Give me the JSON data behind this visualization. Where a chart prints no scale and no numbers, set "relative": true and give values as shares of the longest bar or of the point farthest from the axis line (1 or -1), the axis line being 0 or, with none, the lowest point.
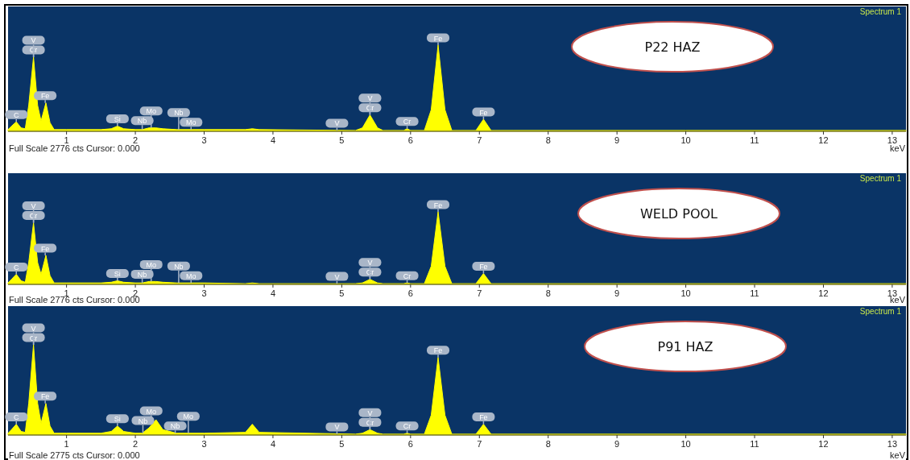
{
  "chart_data": [
    {
      "type": "area",
      "title": "P22 HAZ",
      "subtitle": "Spectrum 1",
      "xlabel": "keV",
      "relative": true,
      "xlim": [
        0.15,
        13.2
      ],
      "xticks": [
        1,
        2,
        3,
        4,
        5,
        6,
        7,
        8,
        9,
        10,
        11,
        12,
        13
      ],
      "grid": false,
      "x": [
        0.15,
        0.2,
        0.27,
        0.34,
        0.4,
        0.45,
        0.52,
        0.58,
        0.63,
        0.7,
        0.76,
        0.82,
        1.0,
        1.5,
        1.65,
        1.74,
        1.83,
        2.0,
        2.1,
        2.2,
        2.3,
        2.4,
        2.6,
        3.0,
        3.6,
        3.7,
        3.8,
        5.2,
        5.3,
        5.41,
        5.52,
        5.6,
        5.9,
        5.95,
        6.0,
        6.2,
        6.3,
        6.4,
        6.5,
        6.6,
        6.95,
        7.06,
        7.17,
        7.5,
        10,
        13.2
      ],
      "series": [
        {
          "color": "#ffff00",
          "values": [
            0.02,
            0.06,
            0.11,
            0.04,
            0.03,
            0.3,
            0.86,
            0.3,
            0.12,
            0.33,
            0.1,
            0.02,
            0.02,
            0.02,
            0.03,
            0.06,
            0.03,
            0.02,
            0.02,
            0.04,
            0.04,
            0.03,
            0.02,
            0.02,
            0.02,
            0.03,
            0.02,
            0.01,
            0.04,
            0.19,
            0.04,
            0.01,
            0.01,
            0.03,
            0.01,
            0.01,
            0.25,
            1,
            0.25,
            0.01,
            0.01,
            0.14,
            0.01,
            0.01,
            0.01,
            0.01
          ]
        }
      ],
      "annotations": [
        "Full Scale 2776 cts Cursor: 0.000",
        {
          "text": "C",
          "x": 0.27,
          "y": 0.11
        },
        {
          "text": "Fe",
          "x": 0.69,
          "y": 0.33
        },
        {
          "text": "Cr",
          "x": 0.52,
          "y": 0.86
        },
        {
          "text": "V",
          "x": 0.52,
          "y": 0.86
        },
        {
          "text": "Si",
          "x": 1.74,
          "y": 0.06
        },
        {
          "text": "Nb",
          "x": 2.1,
          "y": 0.02
        },
        {
          "text": "Mo",
          "x": 2.23,
          "y": 0.04
        },
        {
          "text": "Mo",
          "x": 2.81,
          "y": 0.02
        },
        {
          "text": "Nb",
          "x": 2.63,
          "y": 0.02
        },
        {
          "text": "V",
          "x": 4.93,
          "y": 0.01
        },
        {
          "text": "Cr",
          "x": 5.41,
          "y": 0.19
        },
        {
          "text": "V",
          "x": 5.41,
          "y": 0.19
        },
        {
          "text": "Cr",
          "x": 5.95,
          "y": 0.03
        },
        {
          "text": "Fe",
          "x": 6.4,
          "y": 1
        },
        {
          "text": "Fe",
          "x": 7.06,
          "y": 0.14
        }
      ]
    },
    {
      "type": "area",
      "title": "WELD POOL",
      "subtitle": "Spectrum 1",
      "xlabel": "keV",
      "relative": true,
      "xlim": [
        0.15,
        13.2
      ],
      "xticks": [
        1,
        2,
        3,
        4,
        5,
        6,
        7,
        8,
        9,
        10,
        11,
        12,
        13
      ],
      "grid": false,
      "x": [
        0.15,
        0.2,
        0.27,
        0.34,
        0.4,
        0.45,
        0.52,
        0.58,
        0.63,
        0.7,
        0.76,
        0.82,
        1.0,
        1.5,
        1.65,
        1.74,
        1.83,
        2.0,
        2.1,
        2.2,
        2.3,
        2.4,
        2.6,
        3.0,
        3.6,
        3.7,
        3.8,
        5.2,
        5.3,
        5.41,
        5.52,
        5.6,
        5.9,
        5.95,
        6.0,
        6.2,
        6.3,
        6.4,
        6.5,
        6.6,
        6.95,
        7.06,
        7.17,
        7.5,
        10,
        13.2
      ],
      "series": [
        {
          "color": "#ffff00",
          "values": [
            0.02,
            0.07,
            0.14,
            0.05,
            0.03,
            0.3,
            0.85,
            0.3,
            0.14,
            0.4,
            0.12,
            0.02,
            0.02,
            0.02,
            0.03,
            0.05,
            0.03,
            0.02,
            0.02,
            0.04,
            0.04,
            0.03,
            0.02,
            0.02,
            0.01,
            0.02,
            0.01,
            0.01,
            0.02,
            0.07,
            0.02,
            0.01,
            0.01,
            0.02,
            0.01,
            0.01,
            0.25,
            1,
            0.25,
            0.01,
            0.01,
            0.15,
            0.01,
            0.01,
            0.01,
            0.01
          ]
        }
      ],
      "annotations": [
        "Full Scale 2776 cts Cursor: 0.000",
        {
          "text": "C",
          "x": 0.27,
          "y": 0.14
        },
        {
          "text": "Fe",
          "x": 0.69,
          "y": 0.4
        },
        {
          "text": "Cr",
          "x": 0.52,
          "y": 0.85
        },
        {
          "text": "V",
          "x": 0.52,
          "y": 0.85
        },
        {
          "text": "Si",
          "x": 1.74,
          "y": 0.05
        },
        {
          "text": "Nb",
          "x": 2.1,
          "y": 0.02
        },
        {
          "text": "Mo",
          "x": 2.23,
          "y": 0.04
        },
        {
          "text": "Mo",
          "x": 2.81,
          "y": 0.02
        },
        {
          "text": "Nb",
          "x": 2.63,
          "y": 0.02
        },
        {
          "text": "V",
          "x": 4.93,
          "y": 0.01
        },
        {
          "text": "Cr",
          "x": 5.41,
          "y": 0.07
        },
        {
          "text": "V",
          "x": 5.41,
          "y": 0.07
        },
        {
          "text": "Cr",
          "x": 5.95,
          "y": 0.02
        },
        {
          "text": "Fe",
          "x": 6.4,
          "y": 1
        },
        {
          "text": "Fe",
          "x": 7.06,
          "y": 0.15
        }
      ]
    },
    {
      "type": "area",
      "title": "P91 HAZ",
      "subtitle": "Spectrum 1",
      "xlabel": "keV",
      "relative": true,
      "xlim": [
        0.15,
        13.2
      ],
      "xticks": [
        1,
        2,
        3,
        4,
        5,
        6,
        7,
        8,
        9,
        10,
        11,
        12,
        13
      ],
      "grid": false,
      "x": [
        0.15,
        0.2,
        0.27,
        0.34,
        0.4,
        0.45,
        0.52,
        0.58,
        0.63,
        0.7,
        0.76,
        0.82,
        1.0,
        1.5,
        1.65,
        1.74,
        1.83,
        2.0,
        2.1,
        2.2,
        2.3,
        2.4,
        2.6,
        3.0,
        3.6,
        3.7,
        3.8,
        5.2,
        5.3,
        5.41,
        5.52,
        5.6,
        5.9,
        5.95,
        6.0,
        6.2,
        6.3,
        6.4,
        6.5,
        6.6,
        6.95,
        7.06,
        7.17,
        7.5,
        10,
        13.2
      ],
      "series": [
        {
          "color": "#ffff00",
          "values": [
            0.02,
            0.06,
            0.12,
            0.04,
            0.03,
            0.35,
            1,
            0.35,
            0.13,
            0.35,
            0.1,
            0.02,
            0.02,
            0.02,
            0.04,
            0.1,
            0.04,
            0.02,
            0.02,
            0.08,
            0.17,
            0.06,
            0.02,
            0.02,
            0.03,
            0.12,
            0.03,
            0.01,
            0.02,
            0.06,
            0.02,
            0.01,
            0.01,
            0.02,
            0.01,
            0.01,
            0.22,
            0.86,
            0.22,
            0.01,
            0.01,
            0.12,
            0.01,
            0.01,
            0.01,
            0.01
          ]
        }
      ],
      "annotations": [
        "Full Scale 2775 cts Cursor: 0.000",
        {
          "text": "C",
          "x": 0.27,
          "y": 0.12
        },
        {
          "text": "Fe",
          "x": 0.69,
          "y": 0.35
        },
        {
          "text": "Cr",
          "x": 0.52,
          "y": 1
        },
        {
          "text": "V",
          "x": 0.52,
          "y": 1
        },
        {
          "text": "Si",
          "x": 1.74,
          "y": 0.1
        },
        {
          "text": "Nb",
          "x": 2.11,
          "y": 0.02
        },
        {
          "text": "Mo",
          "x": 2.23,
          "y": 0.17
        },
        {
          "text": "Nb",
          "x": 2.58,
          "y": 0.02
        },
        {
          "text": "Mo",
          "x": 2.77,
          "y": 0.02
        },
        {
          "text": "V",
          "x": 4.93,
          "y": 0.01
        },
        {
          "text": "Cr",
          "x": 5.41,
          "y": 0.06
        },
        {
          "text": "V",
          "x": 5.41,
          "y": 0.06
        },
        {
          "text": "Cr",
          "x": 5.95,
          "y": 0.02
        },
        {
          "text": "Fe",
          "x": 6.4,
          "y": 0.86
        },
        {
          "text": "Fe",
          "x": 7.06,
          "y": 0.12
        }
      ]
    }
  ]
}
